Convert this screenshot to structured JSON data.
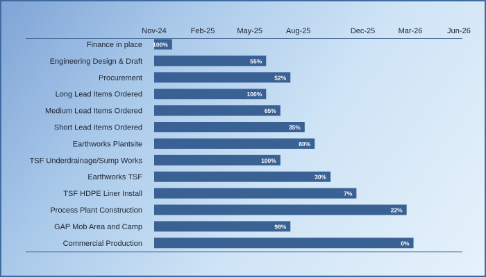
{
  "chart_data": {
    "type": "bar",
    "orientation": "horizontal",
    "title": "",
    "xlabel": "",
    "ylabel": "",
    "x_ticks": [
      "Nov-24",
      "Feb-25",
      "May-25",
      "Aug-25",
      "Dec-25",
      "Mar-26",
      "Jun-26"
    ],
    "x_tick_dates": [
      "2024-11-01",
      "2025-02-01",
      "2025-05-01",
      "2025-08-01",
      "2025-12-01",
      "2026-03-01",
      "2026-06-01"
    ],
    "x_axis_position": "top",
    "xlim": [
      "2024-11-01",
      "2026-06-01"
    ],
    "grid": false,
    "bar_color": "#3a6193",
    "tasks": [
      {
        "name": "Finance in place",
        "start": "2024-11-01",
        "end": "2024-12-05",
        "label": "100%"
      },
      {
        "name": "Engineering Design & Draft",
        "start": "2024-11-01",
        "end": "2025-06-01",
        "label": "55%"
      },
      {
        "name": "Procurement",
        "start": "2024-11-01",
        "end": "2025-07-17",
        "label": "52%"
      },
      {
        "name": "Long Lead Items Ordered",
        "start": "2024-11-01",
        "end": "2025-06-01",
        "label": "100%"
      },
      {
        "name": "Medium Lead Items Ordered",
        "start": "2024-11-01",
        "end": "2025-06-28",
        "label": "65%"
      },
      {
        "name": "Short Lead Items Ordered",
        "start": "2024-11-01",
        "end": "2025-08-13",
        "label": "35%"
      },
      {
        "name": "Earthworks Plantsite",
        "start": "2024-11-01",
        "end": "2025-09-01",
        "label": "80%"
      },
      {
        "name": "TSF Underdrainage/Sump Works",
        "start": "2024-11-01",
        "end": "2025-06-28",
        "label": "100%"
      },
      {
        "name": "Earthworks TSF",
        "start": "2024-11-01",
        "end": "2025-10-01",
        "label": "30%"
      },
      {
        "name": "TSF HDPE Liner Install",
        "start": "2024-11-01",
        "end": "2025-11-19",
        "label": "7%"
      },
      {
        "name": "Process Plant Construction",
        "start": "2024-11-01",
        "end": "2026-02-22",
        "label": "22%"
      },
      {
        "name": "GAP Mob Area and Camp",
        "start": "2024-11-01",
        "end": "2025-07-17",
        "label": "98%"
      },
      {
        "name": "Commercial Production",
        "start": "2024-11-01",
        "end": "2026-03-07",
        "label": "0%"
      }
    ]
  }
}
